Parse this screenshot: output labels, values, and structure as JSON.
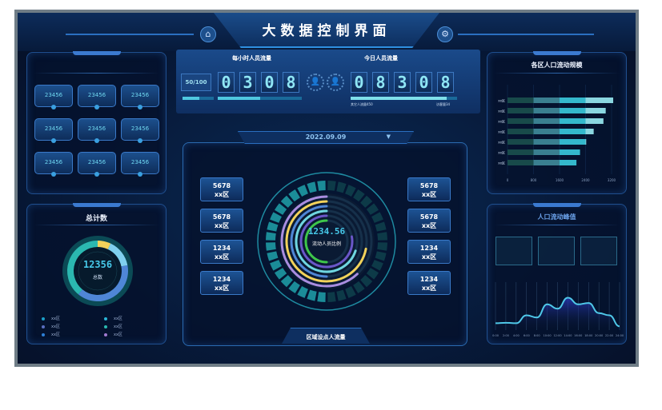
{
  "header": {
    "title": "大数据控制界面",
    "home_icon": "home-icon",
    "settings_icon": "gear-icon"
  },
  "left_top": {
    "buttons": [
      "23456",
      "23456",
      "23456",
      "23456",
      "23456",
      "23456",
      "23456",
      "23456",
      "23456"
    ]
  },
  "total": {
    "title": "总计数",
    "value": "12356",
    "label": "总数",
    "segments": [
      {
        "color": "#f2d25a",
        "share": 7
      },
      {
        "color": "#7fd0ee",
        "share": 15
      },
      {
        "color": "#4f86d6",
        "share": 39
      },
      {
        "color": "#2bb8b0",
        "share": 39
      }
    ],
    "legend": [
      {
        "label": "xx区",
        "color": "#1a9fc8"
      },
      {
        "label": "xx区",
        "color": "#2ab6d8"
      },
      {
        "label": "xx区",
        "color": "#5a6fc0"
      },
      {
        "label": "xx区",
        "color": "#2ab8b0"
      },
      {
        "label": "xx区",
        "color": "#2e7fd6"
      },
      {
        "label": "xx区",
        "color": "#a07ad0"
      }
    ]
  },
  "hourly": {
    "title": "每小时人员流量",
    "ratio": "50/100",
    "digits": [
      "0",
      "3",
      "0",
      "8"
    ],
    "progress_small": 0.55,
    "progress": 0.5
  },
  "today": {
    "title": "今日人员流量",
    "digits": [
      "0",
      "8",
      "3",
      "0",
      "8"
    ],
    "progress": 0.9,
    "other_label": "其它人流量450",
    "visitor_label": "访客量34"
  },
  "center": {
    "date": "2022.09.09",
    "value": "1234.56",
    "value_label": "流动人员比例",
    "footer": "区域设点人流量",
    "left_stats": [
      {
        "value": "5678",
        "label": "xx区"
      },
      {
        "value": "5678",
        "label": "xx区"
      },
      {
        "value": "1234",
        "label": "xx区"
      },
      {
        "value": "1234",
        "label": "xx区"
      }
    ],
    "right_stats": [
      {
        "value": "5678",
        "label": "xx区"
      },
      {
        "value": "5678",
        "label": "xx区"
      },
      {
        "value": "1234",
        "label": "xx区"
      },
      {
        "value": "1234",
        "label": "xx区"
      }
    ],
    "rings": [
      {
        "color": "#a98de0",
        "fraction": 0.62
      },
      {
        "color": "#f2d25a",
        "fraction": 0.72
      },
      {
        "color": "#4f86d6",
        "fraction": 0.5
      },
      {
        "color": "#6fd6e0",
        "fraction": 0.7
      },
      {
        "color": "#6a56c8",
        "fraction": 0.78
      },
      {
        "color": "#3ec64a",
        "fraction": 0.5
      }
    ]
  },
  "chart_data": [
    {
      "type": "bar",
      "orientation": "horizontal",
      "title": "各区人口流动规模",
      "categories": [
        "xx区",
        "xx区",
        "xx区",
        "xx区",
        "xx区",
        "xx区",
        "xx区"
      ],
      "values": [
        3250,
        3020,
        2950,
        2650,
        2420,
        2230,
        2120
      ],
      "xlim": [
        0,
        3200
      ],
      "xticks": [
        "0",
        "800",
        "1600",
        "2400",
        "3200"
      ],
      "segment_colors": [
        "#184a4a",
        "#3a7f90",
        "#34b8cc",
        "#8ad6e0"
      ],
      "grid": true
    },
    {
      "type": "area",
      "title": "人口流动峰值",
      "x": [
        "0:00",
        "2:00",
        "4:00",
        "6:00",
        "8:00",
        "10:00",
        "12:00",
        "14:00",
        "16:00",
        "18:00",
        "20:00",
        "22:00",
        "24:00"
      ],
      "values": [
        0.12,
        0.13,
        0.12,
        0.3,
        0.25,
        0.55,
        0.45,
        0.7,
        0.55,
        0.58,
        0.35,
        0.3,
        0.05
      ],
      "grid": true,
      "line_color": "#4fc8e8"
    }
  ]
}
